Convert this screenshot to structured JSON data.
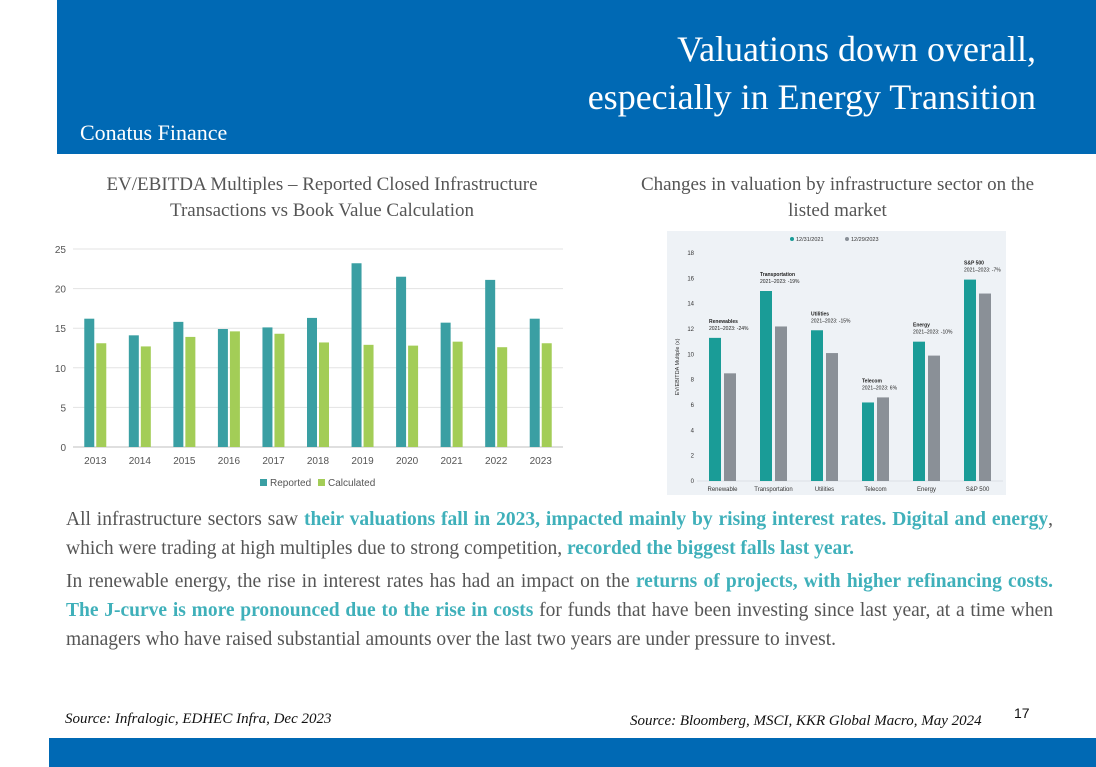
{
  "header": {
    "title_line1": "Valuations down overall,",
    "title_line2": "especially in Energy Transition",
    "brand": "Conatus Finance"
  },
  "colors": {
    "header_bg": "#0069b4",
    "reported": "#3a9fa3",
    "calculated": "#a3cd57",
    "teal_bar": "#1a9c97",
    "gray_bar": "#8a9097",
    "highlight": "#3fb0ba"
  },
  "chart1_title": "EV/EBITDA Multiples – Reported Closed Infrastructure Transactions vs Book Value Calculation",
  "chart2_title": "Changes in valuation by infrastructure sector on the listed market",
  "chart_data": [
    {
      "type": "bar",
      "title": "EV/EBITDA Multiples – Reported Closed Infrastructure Transactions vs Book Value Calculation",
      "categories": [
        "2013",
        "2014",
        "2015",
        "2016",
        "2017",
        "2018",
        "2019",
        "2020",
        "2021",
        "2022",
        "2023"
      ],
      "series": [
        {
          "name": "Reported",
          "values": [
            16.2,
            14.1,
            15.8,
            14.9,
            15.1,
            16.3,
            23.2,
            21.5,
            15.7,
            21.1,
            16.2
          ]
        },
        {
          "name": "Calculated",
          "values": [
            13.1,
            12.7,
            13.9,
            14.6,
            14.3,
            13.2,
            12.9,
            12.8,
            13.3,
            12.6,
            13.1
          ]
        }
      ],
      "yticks": [
        0,
        5,
        10,
        15,
        20,
        25
      ],
      "ylim": [
        0,
        25
      ],
      "grid": true,
      "legend": "bottom"
    },
    {
      "type": "bar",
      "title": "Changes in valuation by infrastructure sector on the listed market",
      "ylabel": "EV/EBITDA Multiple (x)",
      "categories": [
        "Renewable",
        "Transportation",
        "Utilities",
        "Telecom",
        "Energy",
        "S&P 500"
      ],
      "series": [
        {
          "name": "12/31/2021",
          "values": [
            11.3,
            15.0,
            11.9,
            6.2,
            11.0,
            15.9
          ]
        },
        {
          "name": "12/29/2023",
          "values": [
            8.5,
            12.2,
            10.1,
            6.6,
            9.9,
            14.8
          ]
        }
      ],
      "annotations": [
        {
          "label": "Renewables",
          "change": "2021–2023: -24%"
        },
        {
          "label": "Transportation",
          "change": "2021–2023: -19%"
        },
        {
          "label": "Utilities",
          "change": "2021–2023: -15%"
        },
        {
          "label": "Telecom",
          "change": "2021–2023: 6%"
        },
        {
          "label": "Energy",
          "change": "2021–2023: -10%"
        },
        {
          "label": "S&P 500",
          "change": "2021–2023: -7%"
        }
      ],
      "yticks": [
        0,
        2,
        4,
        6,
        8,
        10,
        12,
        14,
        16,
        18
      ],
      "ylim": [
        0,
        18
      ],
      "legend": "top"
    }
  ],
  "para1": {
    "t1": "All infrastructure sectors saw ",
    "h1": "their valuations fall in 2023, impacted mainly by rising interest rates. Digital and energy",
    "t2": ", which were trading at high multiples due to strong competition, ",
    "h2": "recorded the biggest falls last year."
  },
  "para2": {
    "t1": "In renewable energy, the rise in interest rates has had an impact on the ",
    "h1": "returns of projects, with higher refinancing costs. The J-curve is more pronounced due to the rise in costs",
    "t2": " for funds that have been investing since last year, at a time when managers who have raised substantial amounts over the last two years are under pressure to invest."
  },
  "source1": "Source: Infralogic, EDHEC Infra, Dec 2023",
  "source2": "Source: Bloomberg, MSCI, KKR Global Macro, May 2024",
  "page_number": "17"
}
